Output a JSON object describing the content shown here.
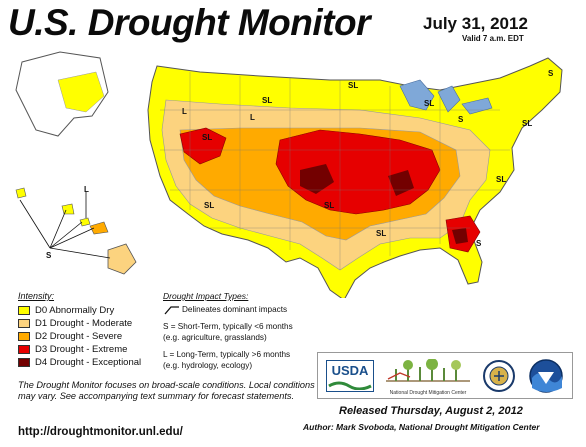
{
  "header": {
    "title": "U.S. Drought Monitor",
    "date": "July 31, 2012",
    "valid": "Valid 7 a.m. EDT"
  },
  "legend": {
    "title": "Intensity:",
    "items": [
      {
        "label": "D0 Abnormally Dry",
        "color": "#ffff00"
      },
      {
        "label": "D1 Drought - Moderate",
        "color": "#fcd37f"
      },
      {
        "label": "D2 Drought - Severe",
        "color": "#ffaa00"
      },
      {
        "label": "D3 Drought - Extreme",
        "color": "#e60000"
      },
      {
        "label": "D4 Drought - Exceptional",
        "color": "#730000"
      }
    ]
  },
  "impact": {
    "title": "Drought Impact Types:",
    "boundary": "Delineates dominant impacts",
    "short_term": "S = Short-Term, typically <6 months",
    "short_term_eg": "(e.g. agriculture, grasslands)",
    "long_term": "L = Long-Term, typically >6 months",
    "long_term_eg": "(e.g. hydrology, ecology)"
  },
  "map_labels": {
    "sl": "SL",
    "s": "S",
    "l": "L"
  },
  "note": "The Drought Monitor focuses on broad-scale conditions. Local conditions may vary. See accompanying text summary for forecast statements.",
  "url": "http://droughtmonitor.unl.edu/",
  "logos": {
    "usda": "USDA",
    "ndmc": "National Drought Mitigation Center"
  },
  "footer": {
    "released": "Released Thursday, August 2, 2012",
    "author": "Author: Mark Svoboda, National Drought Mitigation Center"
  }
}
